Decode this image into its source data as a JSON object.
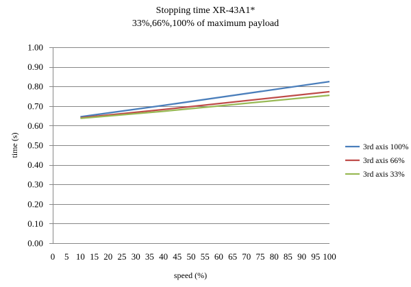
{
  "chart_data": {
    "type": "line",
    "title": "Stopping time   XR-43A1*",
    "subtitle": "33%,66%,100% of maximum payload",
    "xlabel": "speed  (%)",
    "ylabel": "time (s)",
    "xlim": [
      0,
      100
    ],
    "ylim": [
      0,
      1.0
    ],
    "x_ticks": [
      "0",
      "5",
      "10",
      "15",
      "20",
      "25",
      "30",
      "35",
      "40",
      "45",
      "50",
      "55",
      "60",
      "65",
      "70",
      "75",
      "80",
      "85",
      "90",
      "95",
      "100"
    ],
    "y_ticks": [
      "0.00",
      "0.10",
      "0.20",
      "0.30",
      "0.40",
      "0.50",
      "0.60",
      "0.70",
      "0.80",
      "0.90",
      "1.00"
    ],
    "grid": "horizontal",
    "legend_position": "right",
    "series": [
      {
        "name": "3rd axis 100%",
        "color": "#4a7ebb",
        "x": [
          10,
          40,
          100
        ],
        "y": [
          0.645,
          0.703,
          0.825
        ]
      },
      {
        "name": "3rd axis 66%",
        "color": "#be4b48",
        "x": [
          10,
          40,
          100
        ],
        "y": [
          0.64,
          0.682,
          0.773
        ]
      },
      {
        "name": "3rd axis 33%",
        "color": "#98b954",
        "x": [
          10,
          40,
          100
        ],
        "y": [
          0.637,
          0.673,
          0.755
        ]
      }
    ]
  }
}
